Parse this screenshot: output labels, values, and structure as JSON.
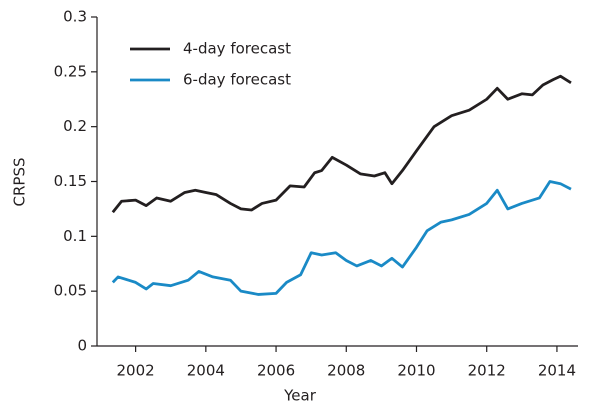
{
  "chart_data": {
    "type": "line",
    "x_label": "Year",
    "y_label": "CRPSS",
    "xlim": [
      2000.9,
      2014.6
    ],
    "xticks": [
      2002,
      2004,
      2006,
      2008,
      2010,
      2012,
      2014
    ],
    "ylim": [
      0,
      0.3
    ],
    "yticks": [
      0,
      0.05,
      0.1,
      0.15,
      0.2,
      0.25,
      0.3
    ],
    "legend": "upper left",
    "series": [
      {
        "name": "4-day forecast",
        "color": "#231f20",
        "x": [
          2001.35,
          2001.6,
          2002,
          2002.3,
          2002.6,
          2003,
          2003.4,
          2003.7,
          2004,
          2004.3,
          2004.7,
          2005,
          2005.3,
          2005.6,
          2006,
          2006.4,
          2006.8,
          2007.1,
          2007.3,
          2007.6,
          2008,
          2008.4,
          2008.8,
          2009.1,
          2009.3,
          2009.6,
          2010,
          2010.5,
          2011,
          2011.5,
          2012,
          2012.3,
          2012.6,
          2013,
          2013.3,
          2013.6,
          2013.9,
          2014.1,
          2014.4
        ],
        "values": [
          0.122,
          0.132,
          0.133,
          0.128,
          0.135,
          0.132,
          0.14,
          0.142,
          0.14,
          0.138,
          0.13,
          0.125,
          0.124,
          0.13,
          0.133,
          0.146,
          0.145,
          0.158,
          0.16,
          0.172,
          0.165,
          0.157,
          0.155,
          0.158,
          0.148,
          0.16,
          0.178,
          0.2,
          0.21,
          0.215,
          0.225,
          0.235,
          0.225,
          0.23,
          0.229,
          0.238,
          0.243,
          0.246,
          0.24
        ]
      },
      {
        "name": "6-day forecast",
        "color": "#1a8ac6",
        "x": [
          2001.35,
          2001.5,
          2002,
          2002.3,
          2002.5,
          2003,
          2003.5,
          2003.8,
          2004.2,
          2004.7,
          2005,
          2005.5,
          2006,
          2006.3,
          2006.7,
          2007,
          2007.3,
          2007.7,
          2008,
          2008.3,
          2008.7,
          2009,
          2009.3,
          2009.6,
          2010,
          2010.3,
          2010.7,
          2011,
          2011.5,
          2012,
          2012.3,
          2012.6,
          2013,
          2013.5,
          2013.8,
          2014.1,
          2014.4
        ],
        "values": [
          0.058,
          0.063,
          0.058,
          0.052,
          0.057,
          0.055,
          0.06,
          0.068,
          0.063,
          0.06,
          0.05,
          0.047,
          0.048,
          0.058,
          0.065,
          0.085,
          0.083,
          0.085,
          0.078,
          0.073,
          0.078,
          0.073,
          0.08,
          0.072,
          0.09,
          0.105,
          0.113,
          0.115,
          0.12,
          0.13,
          0.142,
          0.125,
          0.13,
          0.135,
          0.15,
          0.148,
          0.143
        ]
      }
    ]
  }
}
